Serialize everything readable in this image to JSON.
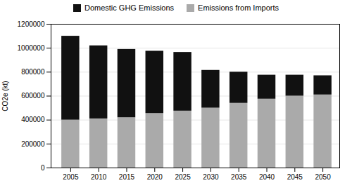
{
  "chart_data": {
    "type": "bar",
    "stacked": true,
    "ylabel": "CO2e (kt)",
    "x": [
      2005,
      2010,
      2015,
      2020,
      2025,
      2030,
      2035,
      2040,
      2045,
      2050
    ],
    "xlim": [
      2001.5,
      2053
    ],
    "xticks": [
      2005,
      2010,
      2015,
      2020,
      2025,
      2030,
      2035,
      2040,
      2045,
      2050
    ],
    "ylim": [
      0,
      1200000
    ],
    "yticks": [
      0,
      200000,
      400000,
      600000,
      800000,
      1000000,
      1200000
    ],
    "grid": true,
    "legend": "top",
    "series": [
      {
        "name": "Emissions from Imports",
        "color": "#aaaaaa",
        "values": [
          400000,
          410000,
          420000,
          455000,
          475000,
          500000,
          540000,
          575000,
          600000,
          610000
        ]
      },
      {
        "name": "Domestic GHG Emissions",
        "color": "#111111",
        "values": [
          700000,
          610000,
          570000,
          520000,
          490000,
          315000,
          260000,
          200000,
          175000,
          160000
        ]
      }
    ]
  }
}
